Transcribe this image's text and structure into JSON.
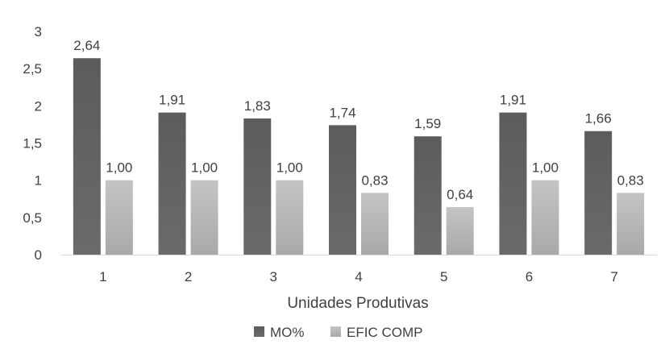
{
  "chart_data": {
    "type": "bar",
    "categories": [
      "1",
      "2",
      "3",
      "4",
      "5",
      "6",
      "7"
    ],
    "series": [
      {
        "name": "MO%",
        "values": [
          2.64,
          1.91,
          1.83,
          1.74,
          1.59,
          1.91,
          1.66
        ],
        "labels": [
          "2,64",
          "1,91",
          "1,83",
          "1,74",
          "1,59",
          "1,91",
          "1,66"
        ],
        "color": "#5a5a5a"
      },
      {
        "name": "EFIC COMP",
        "values": [
          1.0,
          1.0,
          1.0,
          0.83,
          0.64,
          1.0,
          0.83
        ],
        "labels": [
          "1,00",
          "1,00",
          "1,00",
          "0,83",
          "0,64",
          "1,00",
          "0,83"
        ],
        "color": "#b3b3b3"
      }
    ],
    "xlabel": "Unidades Produtivas",
    "ylabel": "",
    "ylim": [
      0,
      3
    ],
    "yticks": [
      0,
      0.5,
      1,
      1.5,
      2,
      2.5,
      3
    ],
    "ytick_labels": [
      "0",
      "0,5",
      "1",
      "1,5",
      "2",
      "2,5",
      "3"
    ],
    "grid": false,
    "legend_position": "bottom"
  }
}
